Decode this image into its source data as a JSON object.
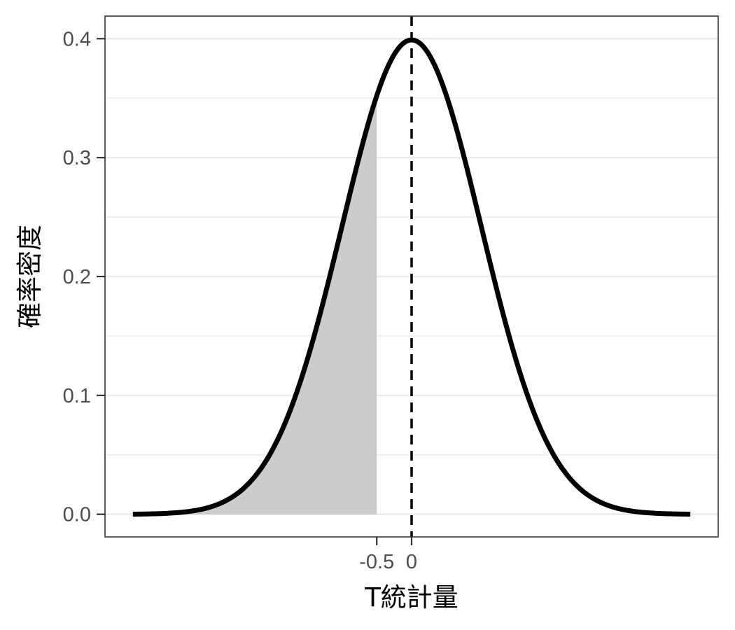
{
  "chart_data": {
    "type": "area",
    "title": "",
    "xlabel": "T統計量",
    "ylabel": "確率密度",
    "xlim": [
      -4.4,
      4.4
    ],
    "ylim": [
      -0.019,
      0.419
    ],
    "grid": true,
    "y_ticks": [
      0.0,
      0.1,
      0.2,
      0.3,
      0.4
    ],
    "y_tick_labels": [
      "0.0",
      "0.1",
      "0.2",
      "0.3",
      "0.4"
    ],
    "x_ticks": [
      -0.5,
      0
    ],
    "x_tick_labels": [
      "-0.5",
      "0"
    ],
    "curve": {
      "distribution": "standard normal density",
      "x_range": [
        -4,
        4
      ],
      "peak": {
        "x": 0,
        "y": 0.399
      },
      "color": "#000000"
    },
    "shaded_region": {
      "from": -4,
      "to": -0.5,
      "color": "#cccccc"
    },
    "reference_line": {
      "x": 0,
      "style": "dashed",
      "color": "#000000"
    }
  }
}
